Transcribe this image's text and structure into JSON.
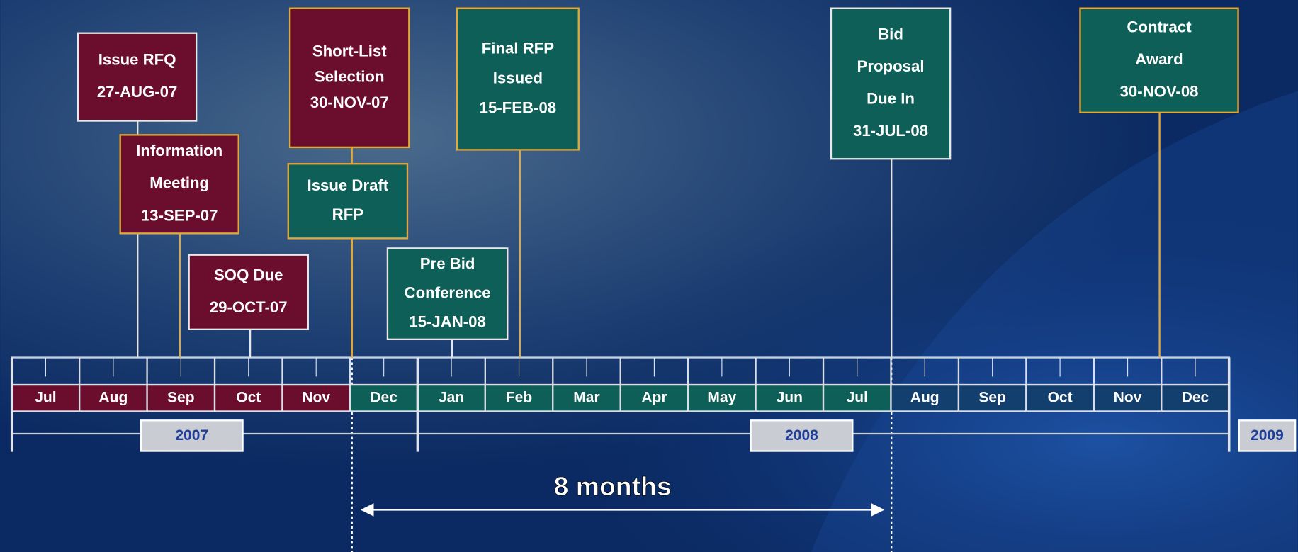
{
  "milestones": [
    {
      "lines": [
        "Issue RFQ",
        "27-AUG-07"
      ],
      "color": "#6b0d2c"
    },
    {
      "lines": [
        "Information",
        "Meeting",
        "13-SEP-07"
      ],
      "color": "#6b0d2c"
    },
    {
      "lines": [
        "SOQ Due",
        "29-OCT-07"
      ],
      "color": "#6b0d2c"
    },
    {
      "lines": [
        "Short-List",
        "Selection",
        "30-NOV-07"
      ],
      "color": "#6b0d2c"
    },
    {
      "lines": [
        "Issue Draft",
        "RFP"
      ],
      "color": "#0e5f57"
    },
    {
      "lines": [
        "Pre Bid",
        "Conference",
        "15-JAN-08"
      ],
      "color": "#0e5f57"
    },
    {
      "lines": [
        "Final RFP",
        "Issued",
        "15-FEB-08"
      ],
      "color": "#0e5f57"
    },
    {
      "lines": [
        "Bid",
        "Proposal",
        "Due In",
        "31-JUL-08"
      ],
      "color": "#0e5f57"
    },
    {
      "lines": [
        "Contract",
        "Award",
        "30-NOV-08"
      ],
      "color": "#0e5f57"
    }
  ],
  "months": [
    "Jul",
    "Aug",
    "Sep",
    "Oct",
    "Nov",
    "Dec",
    "Jan",
    "Feb",
    "Mar",
    "Apr",
    "May",
    "Jun",
    "Jul",
    "Aug",
    "Sep",
    "Oct",
    "Nov",
    "Dec"
  ],
  "years": [
    "2007",
    "2008",
    "2009"
  ],
  "span_label": "8 months"
}
